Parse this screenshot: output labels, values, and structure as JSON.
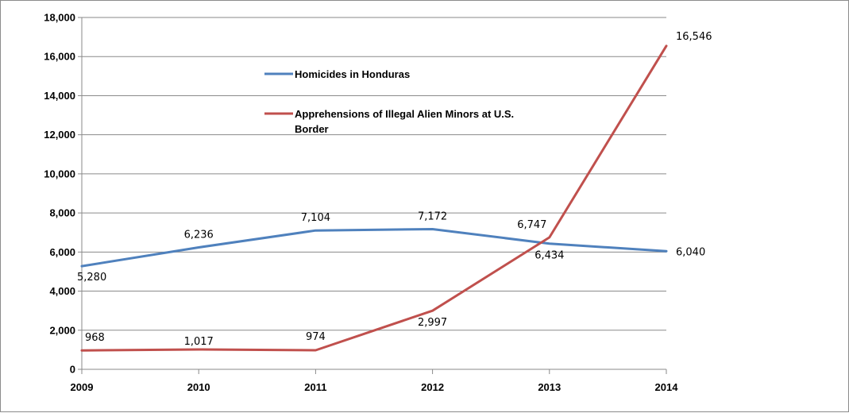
{
  "chart_data": {
    "type": "line",
    "title": "",
    "xlabel": "",
    "ylabel": "",
    "categories": [
      "2009",
      "2010",
      "2011",
      "2012",
      "2013",
      "2014"
    ],
    "ylim": [
      0,
      18000
    ],
    "y_ticks": [
      "0",
      "2,000",
      "4,000",
      "6,000",
      "8,000",
      "10,000",
      "12,000",
      "14,000",
      "16,000",
      "18,000"
    ],
    "grid": "horizontal",
    "legend_position": "top-center (inside plot)",
    "series": [
      {
        "name": "Homicides in Honduras",
        "color": "#4f81bd",
        "values": [
          5280,
          6236,
          7104,
          7172,
          6434,
          6040
        ],
        "labels": [
          "5,280",
          "6,236",
          "7,104",
          "7,172",
          "6,434",
          "6,040"
        ]
      },
      {
        "name": "Apprehensions of Illegal Alien Minors at U.S. Border",
        "color": "#c0504d",
        "values": [
          968,
          1017,
          974,
          2997,
          6747,
          16546
        ],
        "labels": [
          "968",
          "1,017",
          "974",
          "2,997",
          "6,747",
          "16,546"
        ]
      }
    ]
  }
}
